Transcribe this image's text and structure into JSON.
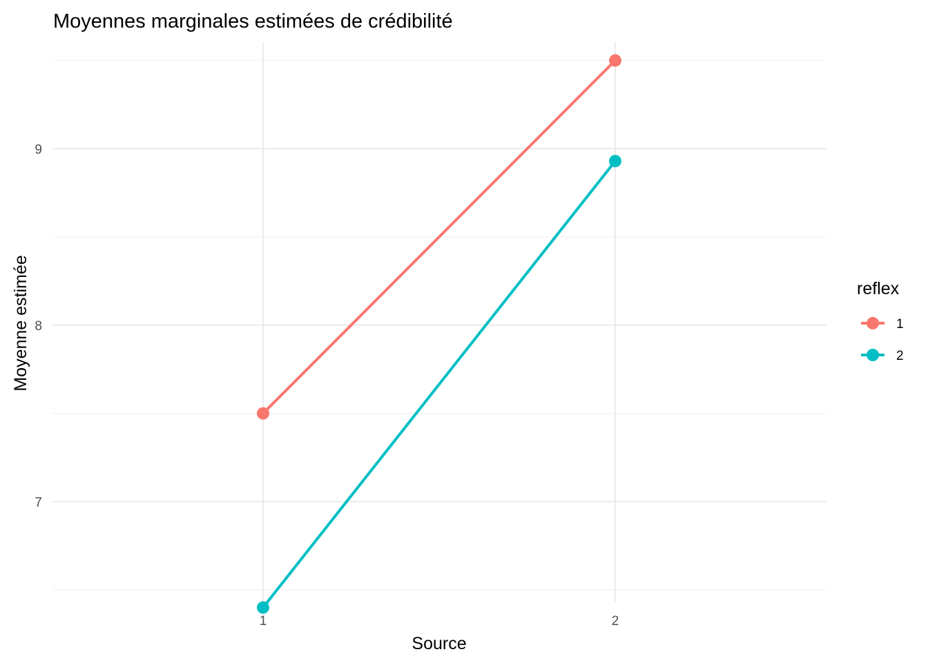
{
  "chart_data": {
    "type": "line",
    "title": "Moyennes marginales estimées de crédibilité",
    "xlabel": "Source",
    "ylabel": "Moyenne estimée",
    "categories": [
      "1",
      "2"
    ],
    "ylim": [
      6.43,
      9.6
    ],
    "yticks": [
      7,
      8,
      9
    ],
    "grid": true,
    "legend": {
      "title": "reflex",
      "position": "right"
    },
    "series": [
      {
        "name": "1",
        "color": "#F8766D",
        "values": [
          7.5,
          9.5
        ]
      },
      {
        "name": "2",
        "color": "#00BFC4",
        "values": [
          6.4,
          8.93
        ]
      }
    ]
  }
}
